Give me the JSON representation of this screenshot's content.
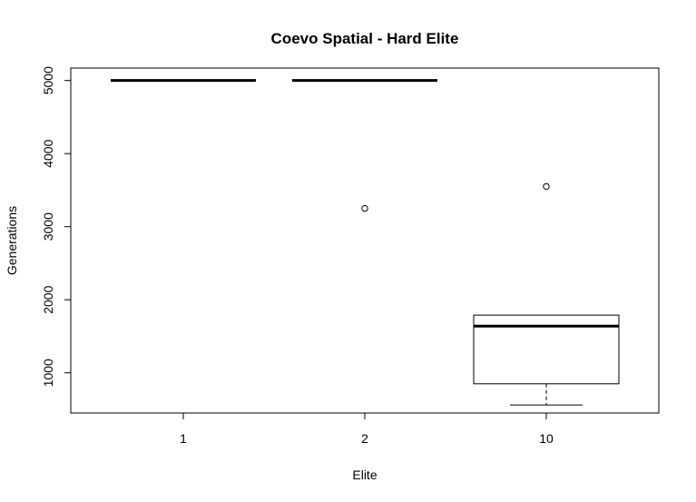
{
  "chart_data": {
    "type": "boxplot",
    "title": "Coevo Spatial - Hard Elite",
    "xlabel": "Elite",
    "ylabel": "Generations",
    "categories": [
      "1",
      "2",
      "10"
    ],
    "ylim": [
      450,
      5170
    ],
    "yticks": [
      1000,
      2000,
      3000,
      4000,
      5000
    ],
    "boxes": [
      {
        "category": "1",
        "whisker_low": 5000,
        "q1": 5000,
        "median": 5000,
        "q3": 5000,
        "whisker_high": 5000,
        "outliers": []
      },
      {
        "category": "2",
        "whisker_low": 5000,
        "q1": 5000,
        "median": 5000,
        "q3": 5000,
        "whisker_high": 5000,
        "outliers": [
          3250
        ]
      },
      {
        "category": "10",
        "whisker_low": 560,
        "q1": 850,
        "median": 1640,
        "q3": 1790,
        "whisker_high": 1790,
        "outliers": [
          3550
        ]
      }
    ]
  }
}
